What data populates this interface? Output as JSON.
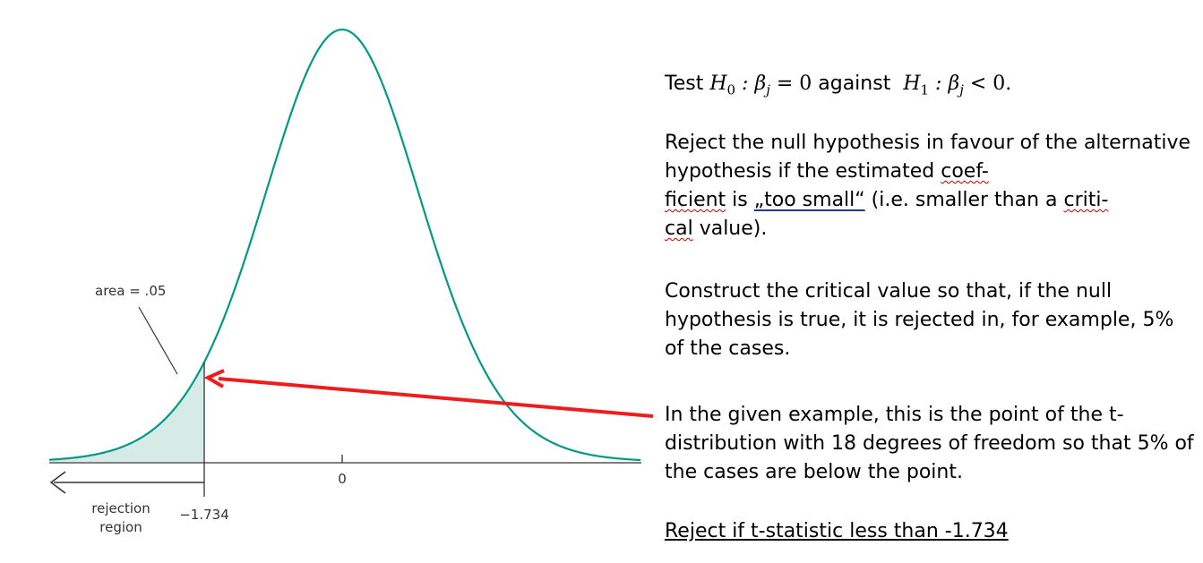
{
  "figure": {
    "area_label": "area = .05",
    "zero_label": "0",
    "critical_label": "−1.734",
    "rejection_label_line1": "rejection",
    "rejection_label_line2": "region",
    "critical_value": -1.734,
    "degrees_of_freedom": 18,
    "tail_area": 0.05,
    "colors": {
      "curve": "#00998a",
      "tail_fill": "#d6ebe6",
      "arrow": "#ee1c1c",
      "axis": "#333333"
    }
  },
  "text": {
    "test_prefix": "Test ",
    "h0": "H",
    "h0_sub": "0",
    "h0_rest": " : β",
    "h0_beta_sub": "j",
    "h0_eq": " = 0",
    "against": " against  ",
    "h1": "H",
    "h1_sub": "1",
    "h1_rest": " : β",
    "h1_beta_sub": "j",
    "h1_lt": " < 0.",
    "para1_a": "Reject the null hypothesis in favour of the alternative hypothesis if the estimated ",
    "para1_coef": "coef-",
    "para1_br": "",
    "para1_ficient": "ficient",
    "para1_b": " is ",
    "para1_toosmall": "„too small“",
    "para1_c": " (i.e. smaller than a ",
    "para1_criti": "criti-",
    "para1_cal": "cal",
    "para1_d": " value).",
    "para2": "Construct the critical value so that, if the null hypothesis is true, it is rejected in, for example, 5% of the cases.",
    "para3": "In the given example, this is the point of the t-distribution with 18 degrees of freedom so that 5% of the cases are below the point.",
    "para4": "Reject if t-statistic less than -1.734"
  }
}
